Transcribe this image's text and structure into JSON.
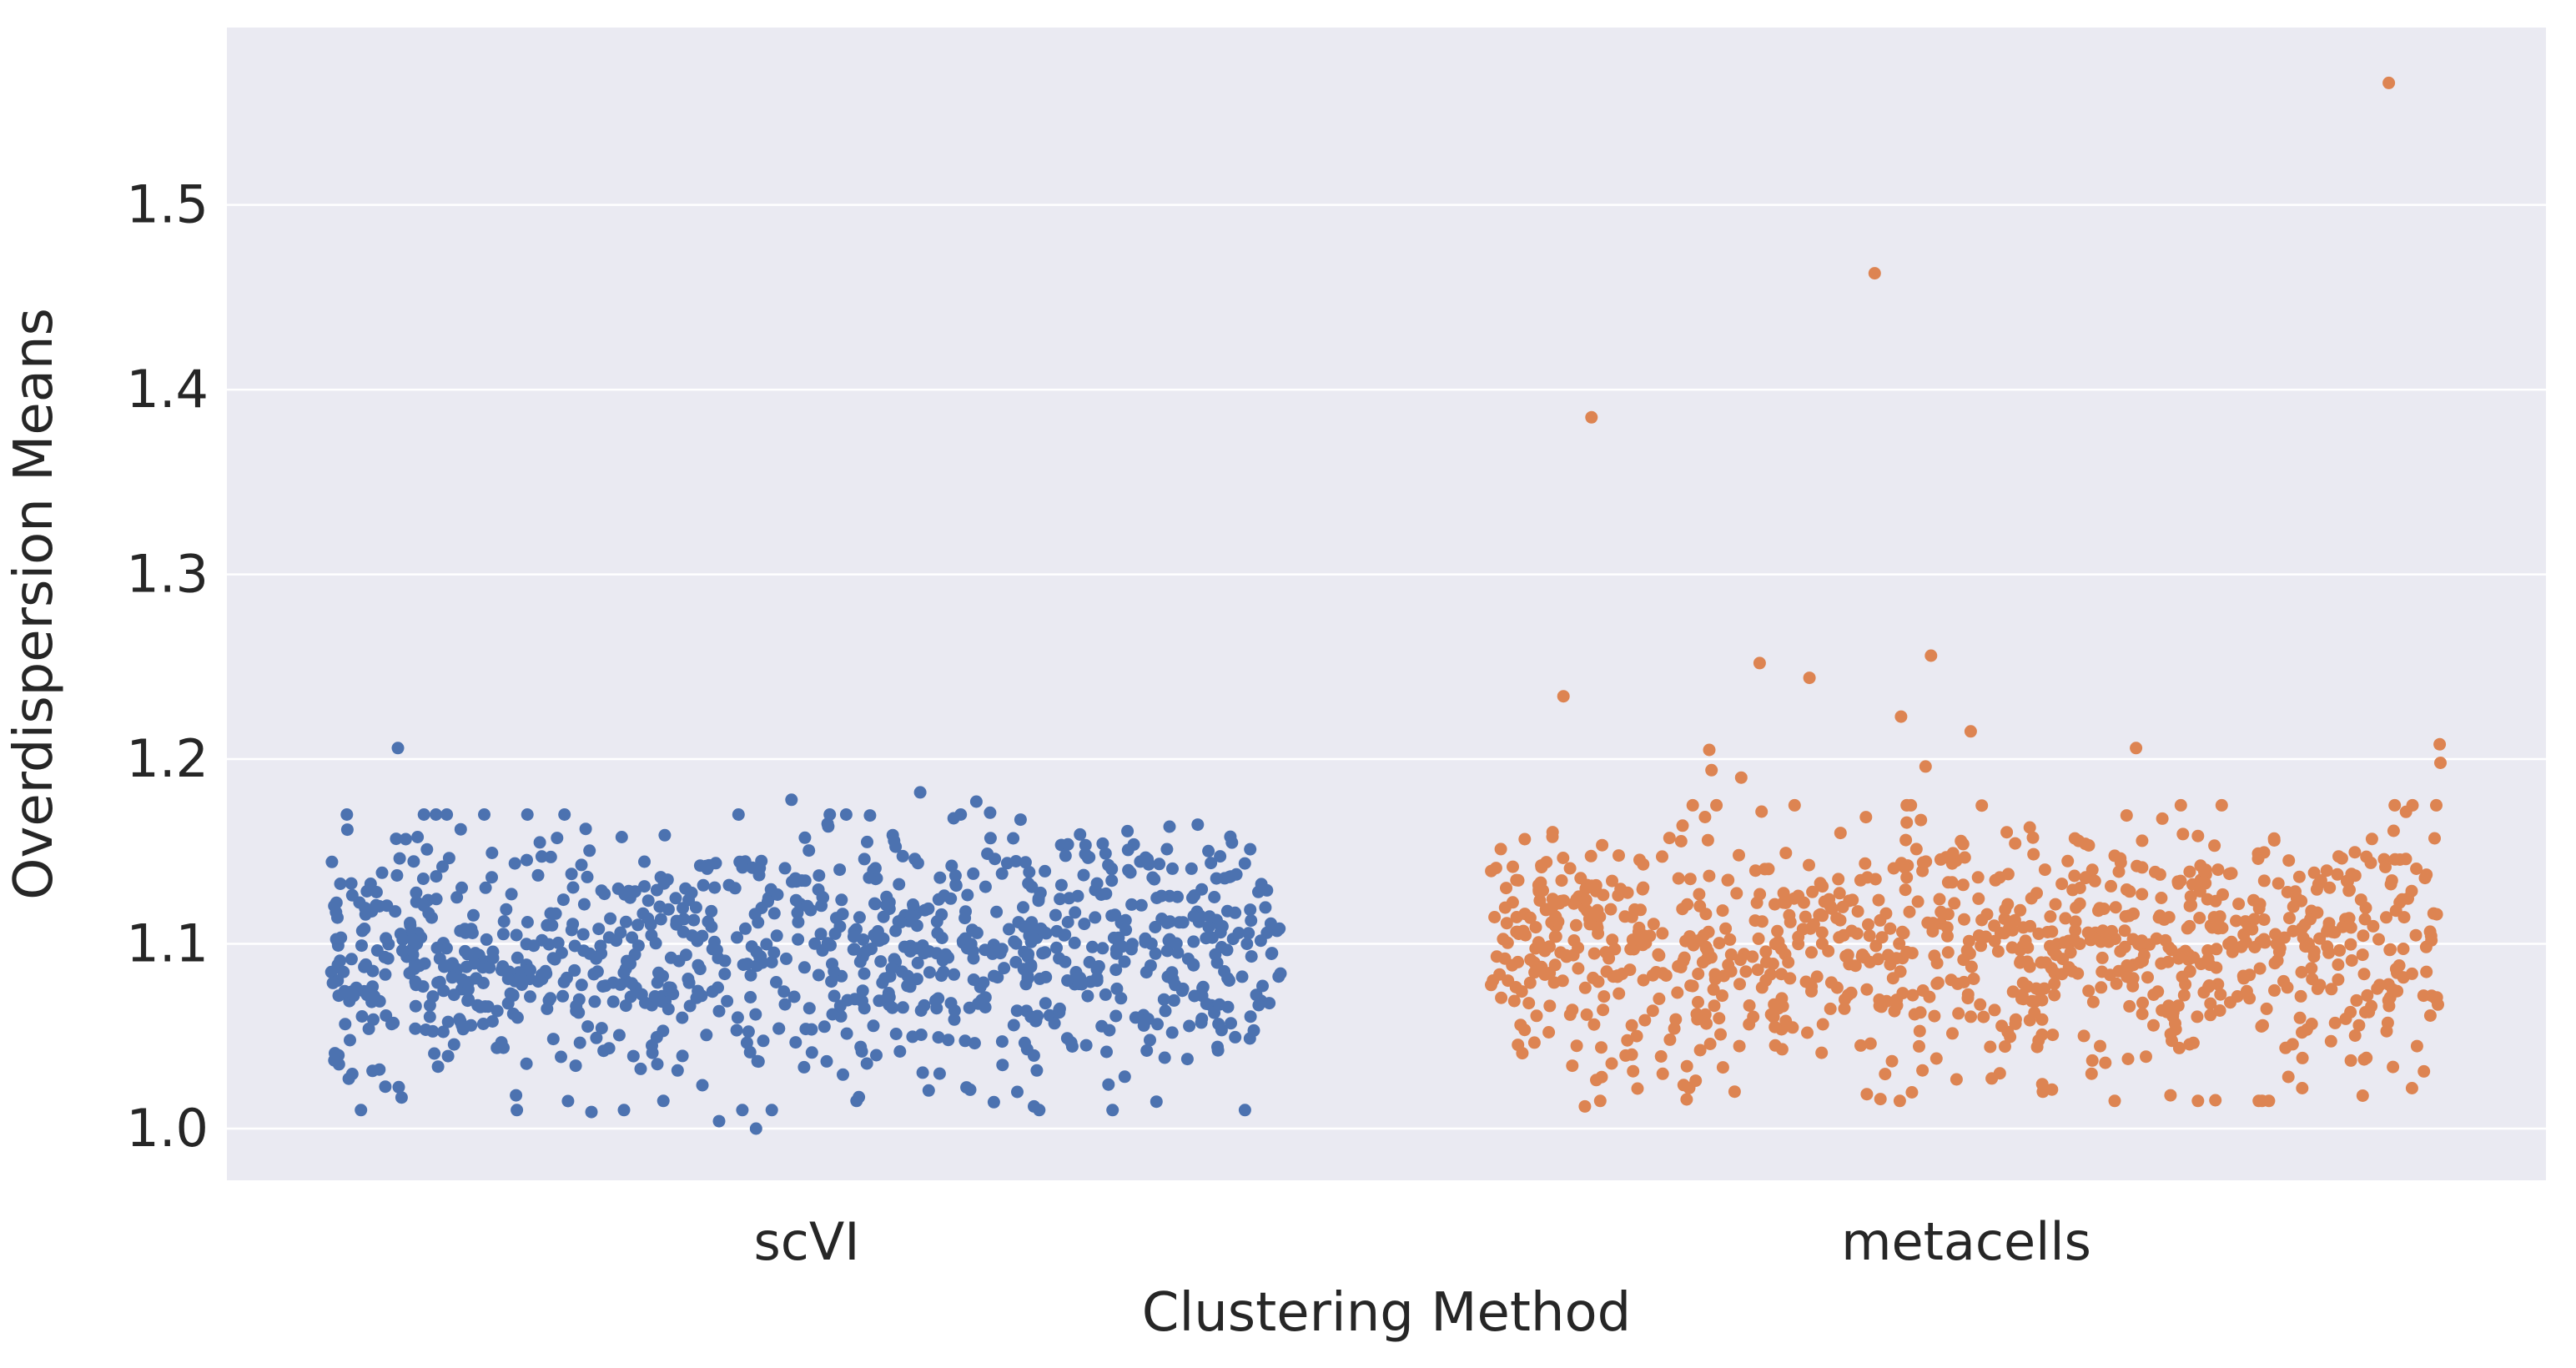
{
  "chart_data": {
    "type": "scatter",
    "subtype": "strip",
    "xlabel": "Clustering Method",
    "ylabel": "Overdispersion Means",
    "categories": [
      "scVI",
      "metacells"
    ],
    "ylim": [
      0.972,
      1.596
    ],
    "yticks": [
      1.0,
      1.1,
      1.2,
      1.3,
      1.4,
      1.5
    ],
    "ytick_labels": [
      "1.0",
      "1.1",
      "1.2",
      "1.3",
      "1.4",
      "1.5"
    ],
    "grid": true,
    "background": "#eaeaf2",
    "gridline_color": "#ffffff",
    "series": [
      {
        "category": "scVI",
        "color": "#4c72b0",
        "n_points": 1000,
        "bulk_range": [
          1.02,
          1.165
        ],
        "center": 1.095,
        "highlighted_values": [
          1.206,
          1.182,
          1.178,
          1.177,
          1.171,
          1.17,
          1.165,
          1.162,
          1.161,
          1.158,
          1.0,
          1.004,
          1.009,
          1.012,
          1.015,
          1.017,
          1.018
        ]
      },
      {
        "category": "metacells",
        "color": "#dd8452",
        "n_points": 1000,
        "bulk_range": [
          1.025,
          1.17
        ],
        "center": 1.1,
        "highlighted_values": [
          1.566,
          1.463,
          1.385,
          1.256,
          1.252,
          1.244,
          1.234,
          1.223,
          1.215,
          1.208,
          1.206,
          1.205,
          1.198,
          1.196,
          1.194,
          1.19,
          1.012,
          1.016,
          1.018,
          1.02,
          1.022
        ]
      }
    ]
  }
}
